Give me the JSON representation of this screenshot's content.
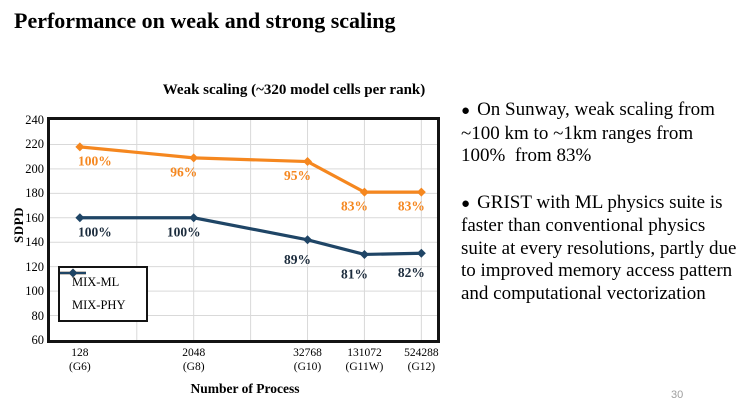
{
  "slide": {
    "title": "Performance on weak and strong scaling",
    "page_number": "30"
  },
  "bullets": [
    {
      "marker": "●",
      "text": "On Sunway, weak scaling from ~100 km to ~1km ranges from 100%  from 83%"
    },
    {
      "marker": "●",
      "text": "GRIST with ML physics suite is faster than conventional physics suite at every resolutions, partly due to improved memory access pattern and computational vectorization"
    }
  ],
  "chart_data": {
    "type": "line",
    "title": "Weak scaling (~320 model cells per rank)",
    "xlabel": "Number of Process",
    "ylabel": "SDPD",
    "x_scale": "log2",
    "x_tick_labels": [
      [
        "128",
        "(G6)"
      ],
      [
        "2048",
        "(G8)"
      ],
      [
        "32768",
        "(G10)"
      ],
      [
        "131072",
        "(G11W)"
      ],
      [
        "524288",
        "(G12)"
      ]
    ],
    "x_values": [
      128,
      2048,
      32768,
      131072,
      524288
    ],
    "x_log2": [
      7,
      11,
      15,
      17,
      19
    ],
    "x_range_log2": [
      5.95,
      19.55
    ],
    "ylim": [
      60,
      240
    ],
    "y_tick_step": 20,
    "grid": "on",
    "x_gridlines_log2": [
      9,
      11,
      13,
      15,
      17,
      19
    ],
    "grid_color": "#D9D9D9",
    "border_color": "#141414",
    "legend_position": "bottom-left",
    "series": [
      {
        "name": "MIX-ML",
        "color": "#F5871F",
        "label_color": "#F5871F",
        "marker": "diamond",
        "values": [
          218,
          209,
          206,
          181,
          181
        ],
        "point_labels": [
          "100%",
          "96%",
          "95%",
          "83%",
          "83%"
        ]
      },
      {
        "name": "MIX-PHY",
        "color": "#1F4566",
        "label_color": "#1B2B3C",
        "marker": "diamond",
        "values": [
          160,
          160,
          142,
          130,
          131
        ],
        "point_labels": [
          "100%",
          "100%",
          "89%",
          "81%",
          "82%"
        ]
      }
    ]
  }
}
